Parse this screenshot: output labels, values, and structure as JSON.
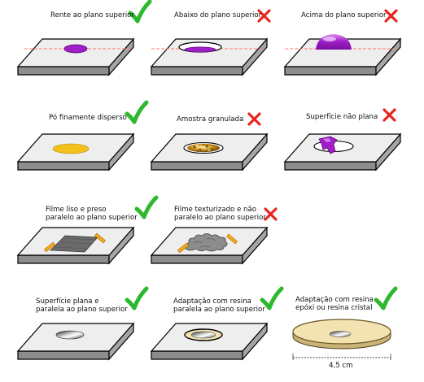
{
  "panels": [
    {
      "caption": "Rente ao plano superior",
      "verdict": "correct"
    },
    {
      "caption": "Abaixo do plano superior",
      "verdict": "incorrect"
    },
    {
      "caption": "Acima do plano superior",
      "verdict": "incorrect"
    },
    {
      "caption": "Pó finamente disperso",
      "verdict": "correct"
    },
    {
      "caption": "Amostra granulada",
      "verdict": "incorrect"
    },
    {
      "caption": "Superfície não plana",
      "verdict": "incorrect"
    },
    {
      "caption": "Filme liso e preso\nparalelo ao plano superior",
      "verdict": "correct"
    },
    {
      "caption": "Filme texturizado e não\nparalelo ao plano superior",
      "verdict": "incorrect"
    },
    {
      "caption": "Superfície plana e\nparalela ao plano superior",
      "verdict": "correct"
    },
    {
      "caption": "Adaptação com resina\nparalela ao plano superior",
      "verdict": "correct"
    },
    {
      "caption": "Adaptação com resina\nepóxi ou resina cristal",
      "verdict": "correct"
    }
  ],
  "dimension_label": "4,5 cm",
  "colors": {
    "correct": "#2db82d",
    "incorrect": "#e8261f",
    "plate_top": "#eeeeee",
    "plate_side": "#9a9a9a",
    "sample_purple": "#a020c8",
    "powder_yellow": "#f2c21a",
    "tape_orange": "#f2a71c",
    "resin_disc": "#f3e3b2"
  }
}
